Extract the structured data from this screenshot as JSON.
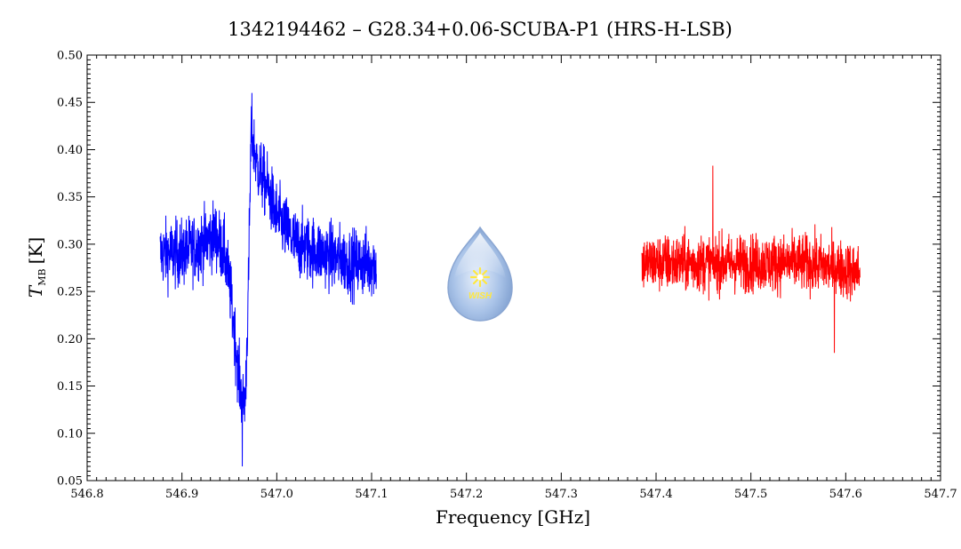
{
  "chart_data": {
    "type": "line",
    "title": "1342194462 – G28.34+0.06-SCUBA-P1 (HRS-H-LSB)",
    "xlabel": "Frequency [GHz]",
    "ylabel": {
      "symbol": "T",
      "subscript": "MB",
      "unit": "[K]"
    },
    "xlim": [
      546.8,
      547.7
    ],
    "ylim": [
      0.05,
      0.5
    ],
    "xticks": [
      "546.8",
      "546.9",
      "547.0",
      "547.1",
      "547.2",
      "547.3",
      "547.4",
      "547.5",
      "547.6",
      "547.7"
    ],
    "yticks": [
      "0.05",
      "0.10",
      "0.15",
      "0.20",
      "0.25",
      "0.30",
      "0.35",
      "0.40",
      "0.45",
      "0.50"
    ],
    "grid": false,
    "logo": {
      "text": "WISH"
    },
    "series": [
      {
        "color": "#0000ff",
        "x_range": [
          546.877,
          547.105
        ],
        "noise": 0.035,
        "min_value": 0.065,
        "max_value": 0.46,
        "profile": [
          [
            546.877,
            0.29
          ],
          [
            546.9,
            0.29
          ],
          [
            546.92,
            0.3
          ],
          [
            546.935,
            0.31
          ],
          [
            546.945,
            0.29
          ],
          [
            546.95,
            0.26
          ],
          [
            546.955,
            0.21
          ],
          [
            546.96,
            0.16
          ],
          [
            546.964,
            0.13
          ],
          [
            546.967,
            0.14
          ],
          [
            546.97,
            0.25
          ],
          [
            546.973,
            0.42
          ],
          [
            546.98,
            0.38
          ],
          [
            546.99,
            0.36
          ],
          [
            547.0,
            0.33
          ],
          [
            547.02,
            0.3
          ],
          [
            547.05,
            0.29
          ],
          [
            547.08,
            0.28
          ],
          [
            547.105,
            0.28
          ]
        ]
      },
      {
        "color": "#ff0000",
        "x_range": [
          547.385,
          547.615
        ],
        "noise": 0.03,
        "min_value": 0.185,
        "max_value": 0.383,
        "profile": [
          [
            547.385,
            0.28
          ],
          [
            547.45,
            0.28
          ],
          [
            547.5,
            0.28
          ],
          [
            547.56,
            0.28
          ],
          [
            547.615,
            0.27
          ]
        ]
      }
    ]
  }
}
